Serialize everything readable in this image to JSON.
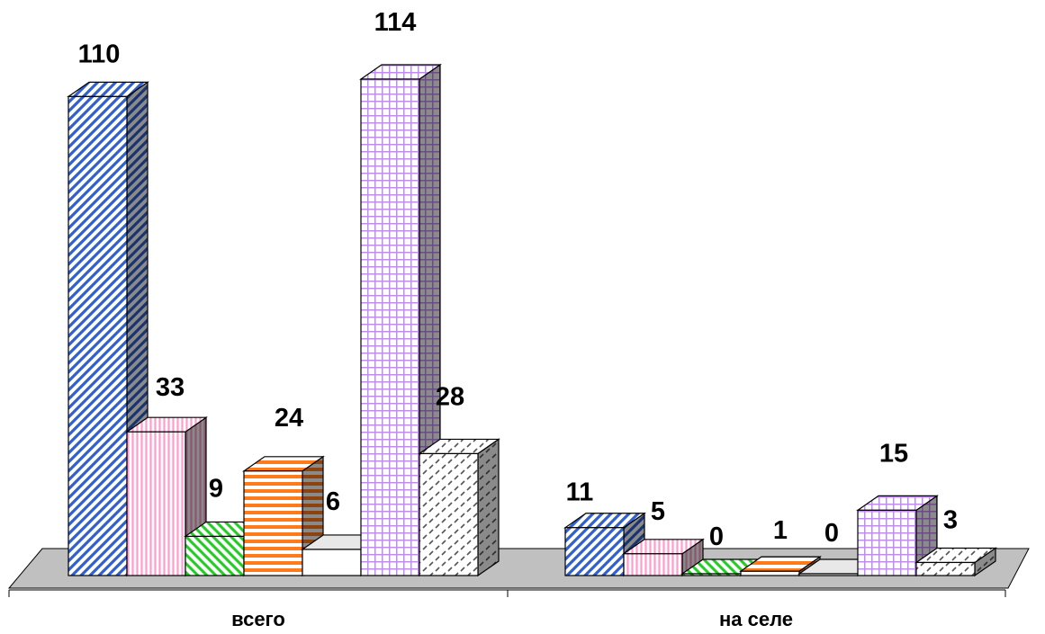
{
  "chart_data": {
    "type": "bar",
    "title": "",
    "xlabel": "",
    "ylabel": "",
    "categories": [
      "всего",
      "на селе"
    ],
    "ylim": [
      0,
      114
    ],
    "grid": false,
    "legend": "none",
    "series": [
      {
        "values": [
          110,
          11
        ],
        "color": "#2f5fd0",
        "pattern": "diagonal-stripes"
      },
      {
        "values": [
          33,
          5
        ],
        "color": "#ff9ccc",
        "pattern": "vertical-stripes"
      },
      {
        "values": [
          9,
          0
        ],
        "color": "#22cc22",
        "pattern": "diagonal-stripes-reverse"
      },
      {
        "values": [
          24,
          1
        ],
        "color": "#ff7a1a",
        "pattern": "horizontal-stripes"
      },
      {
        "values": [
          6,
          0
        ],
        "color": "#ffffff",
        "pattern": "solid"
      },
      {
        "values": [
          114,
          15
        ],
        "color": "#c18cf0",
        "pattern": "grid"
      },
      {
        "values": [
          28,
          3
        ],
        "color": "#555555",
        "pattern": "dashes"
      }
    ]
  }
}
